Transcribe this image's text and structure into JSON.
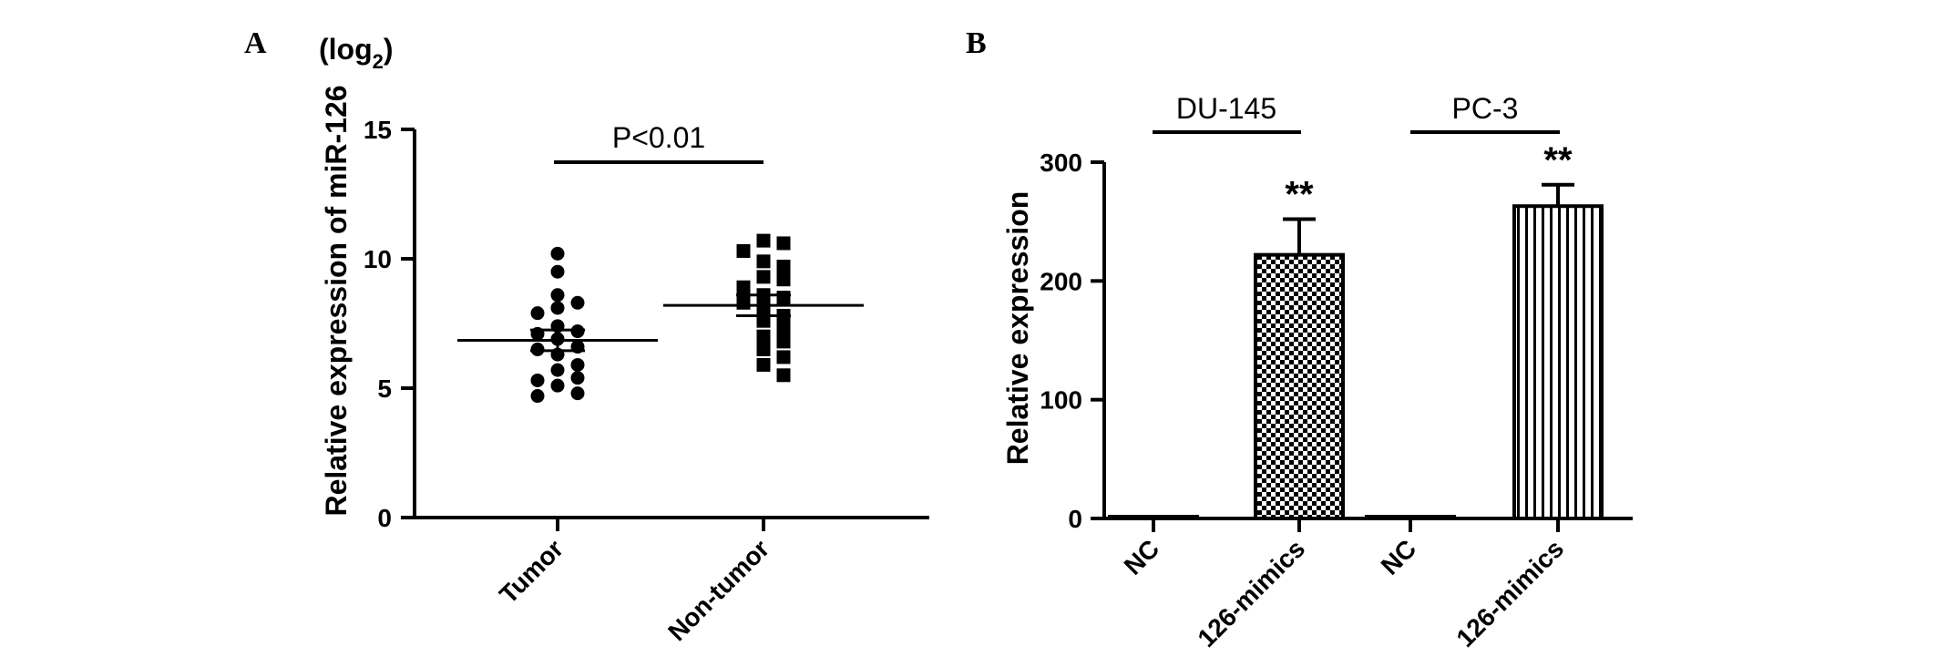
{
  "chart_data": [
    {
      "panel": "A",
      "type": "scatter",
      "unit_label": "(log",
      "unit_sub": "2",
      "unit_close": ")",
      "ylabel": "Relative expression of miR-126",
      "categories": [
        "Tumor",
        "Non-tumor"
      ],
      "ylim": [
        0,
        15
      ],
      "yticks": [
        "0",
        "5",
        "10",
        "15"
      ],
      "annotation": "P<0.01",
      "series": [
        {
          "category": "Tumor",
          "marker": "circle",
          "mean": 6.85,
          "sem": [
            6.45,
            7.25
          ],
          "values": [
            10.2,
            9.5,
            8.6,
            8.3,
            8.1,
            7.9,
            7.4,
            7.2,
            7.1,
            6.9,
            6.6,
            6.5,
            6.3,
            5.9,
            5.7,
            5.4,
            5.3,
            5.1,
            4.8,
            4.7
          ]
        },
        {
          "category": "Non-tumor",
          "marker": "square",
          "mean": 8.2,
          "sem": [
            7.8,
            8.6
          ],
          "values": [
            10.7,
            10.6,
            10.3,
            9.9,
            9.7,
            9.3,
            9.2,
            8.9,
            8.6,
            8.5,
            8.3,
            8.1,
            7.8,
            7.6,
            7.3,
            7.0,
            6.8,
            6.5,
            6.2,
            5.9,
            5.5
          ]
        }
      ]
    },
    {
      "panel": "B",
      "type": "bar",
      "ylabel": "Relative expression",
      "categories": [
        "NC",
        "126-mimics",
        "NC",
        "126-mimics"
      ],
      "values": [
        1,
        222,
        1,
        263
      ],
      "errors": [
        0,
        30,
        0,
        18
      ],
      "patterns": [
        "none",
        "checker",
        "none",
        "vertical-lines"
      ],
      "ylim": [
        0,
        300
      ],
      "yticks": [
        "0",
        "100",
        "200",
        "300"
      ],
      "groups": [
        "DU-145",
        "PC-3"
      ],
      "significance": [
        "",
        "**",
        "",
        "**"
      ]
    }
  ]
}
